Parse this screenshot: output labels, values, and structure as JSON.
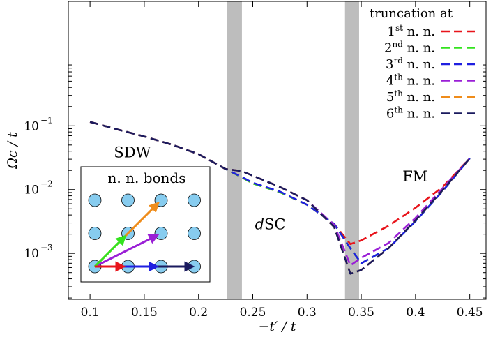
{
  "chart_data": {
    "type": "line",
    "xlabel": "−t′ / t",
    "ylabel": "Ωc / t",
    "xlim": [
      0.08,
      0.465
    ],
    "ylim_log10": [
      -3.72,
      0.95
    ],
    "yscale": "log",
    "xticks": [
      0.1,
      0.15,
      0.2,
      0.25,
      0.3,
      0.35,
      0.4,
      0.45
    ],
    "xtick_labels": [
      "0.1",
      "0.15",
      "0.2",
      "0.25",
      "0.3",
      "0.35",
      "0.4",
      "0.45"
    ],
    "yticks": [
      0.1,
      0.01,
      0.001
    ],
    "ytick_bases": [
      "10",
      "10",
      "10"
    ],
    "ytick_exps": [
      "−1",
      "−2",
      "−3"
    ],
    "grid": false,
    "legend_title": "truncation at",
    "legend_placement": "top-right",
    "phase_bands": [
      [
        0.226,
        0.24
      ],
      [
        0.335,
        0.348
      ]
    ],
    "regions": [
      {
        "label": "SDW",
        "x": 0.122,
        "y": 0.032
      },
      {
        "label": "SC",
        "prefix": "d",
        "x": 0.252,
        "y": 0.0024
      },
      {
        "label": "FM",
        "x": 0.388,
        "y": 0.0135
      }
    ],
    "series": [
      {
        "name": "1st n. n.",
        "ord": "st",
        "color": "#e8141b",
        "x": [
          0.1,
          0.125,
          0.15,
          0.175,
          0.2,
          0.225,
          0.24,
          0.25,
          0.275,
          0.3,
          0.325,
          0.34,
          0.35,
          0.375,
          0.4,
          0.425,
          0.45
        ],
        "y": [
          0.115,
          0.088,
          0.068,
          0.051,
          0.036,
          0.021,
          0.0155,
          0.0125,
          0.0091,
          0.0058,
          0.0029,
          0.0014,
          0.0016,
          0.0027,
          0.0052,
          0.011,
          0.031
        ]
      },
      {
        "name": "2nd n. n.",
        "ord": "nd",
        "color": "#33e31e",
        "x": [
          0.1,
          0.125,
          0.15,
          0.175,
          0.2,
          0.225,
          0.24,
          0.25,
          0.275,
          0.3,
          0.325,
          0.34,
          0.35,
          0.375,
          0.4,
          0.425,
          0.45
        ],
        "y": [
          0.115,
          0.088,
          0.068,
          0.051,
          0.036,
          0.021,
          0.0155,
          0.0125,
          0.0091,
          0.0058,
          0.0029,
          0.0012,
          0.0007,
          0.0012,
          0.0032,
          0.0095,
          0.031
        ]
      },
      {
        "name": "3rd n. n.",
        "ord": "rd",
        "color": "#1f1fe0",
        "x": [
          0.1,
          0.125,
          0.15,
          0.175,
          0.2,
          0.225,
          0.24,
          0.25,
          0.275,
          0.3,
          0.325,
          0.34,
          0.35,
          0.375,
          0.4,
          0.425,
          0.45
        ],
        "y": [
          0.115,
          0.088,
          0.068,
          0.051,
          0.036,
          0.021,
          0.0158,
          0.0128,
          0.0093,
          0.0058,
          0.0029,
          0.0012,
          0.0007,
          0.0012,
          0.0032,
          0.0095,
          0.031
        ]
      },
      {
        "name": "4th n. n.",
        "ord": "th",
        "color": "#9a1fd6",
        "x": [
          0.1,
          0.125,
          0.15,
          0.175,
          0.2,
          0.225,
          0.24,
          0.25,
          0.275,
          0.3,
          0.325,
          0.34,
          0.35,
          0.375,
          0.4,
          0.425,
          0.45
        ],
        "y": [
          0.115,
          0.088,
          0.068,
          0.051,
          0.036,
          0.021,
          0.0195,
          0.0165,
          0.011,
          0.0068,
          0.0028,
          0.00065,
          0.00085,
          0.00145,
          0.0036,
          0.0105,
          0.031
        ]
      },
      {
        "name": "5th n. n.",
        "ord": "th",
        "color": "#ef8c1a",
        "x": [
          0.1,
          0.125,
          0.15,
          0.175,
          0.2,
          0.225,
          0.24,
          0.25,
          0.275,
          0.3,
          0.325,
          0.34,
          0.35,
          0.375,
          0.4,
          0.425,
          0.45
        ],
        "y": [
          0.115,
          0.088,
          0.068,
          0.051,
          0.036,
          0.021,
          0.0195,
          0.0165,
          0.011,
          0.0068,
          0.0026,
          0.00048,
          0.00055,
          0.0012,
          0.0033,
          0.0098,
          0.031
        ]
      },
      {
        "name": "6th n. n.",
        "ord": "th",
        "color": "#1a1a5e",
        "x": [
          0.1,
          0.125,
          0.15,
          0.175,
          0.2,
          0.225,
          0.24,
          0.25,
          0.275,
          0.3,
          0.325,
          0.34,
          0.35,
          0.375,
          0.4,
          0.425,
          0.45
        ],
        "y": [
          0.115,
          0.088,
          0.068,
          0.051,
          0.036,
          0.021,
          0.0195,
          0.0165,
          0.011,
          0.0068,
          0.0026,
          0.00048,
          0.00055,
          0.0012,
          0.0033,
          0.0098,
          0.031
        ]
      }
    ],
    "inset": {
      "title": "n. n. bonds",
      "lattice": "4x3",
      "site_color": "#87ccef",
      "bonds": [
        {
          "dx": 1,
          "dy": 0,
          "color": "#e8141b"
        },
        {
          "dx": 1,
          "dy": 1,
          "color": "#33e31e"
        },
        {
          "dx": 2,
          "dy": 0,
          "color": "#1f1fe0"
        },
        {
          "dx": 2,
          "dy": 1,
          "color": "#9a1fd6"
        },
        {
          "dx": 2,
          "dy": 2,
          "color": "#ef8c1a"
        },
        {
          "dx": 3,
          "dy": 0,
          "color": "#1a1a5e"
        }
      ]
    }
  }
}
